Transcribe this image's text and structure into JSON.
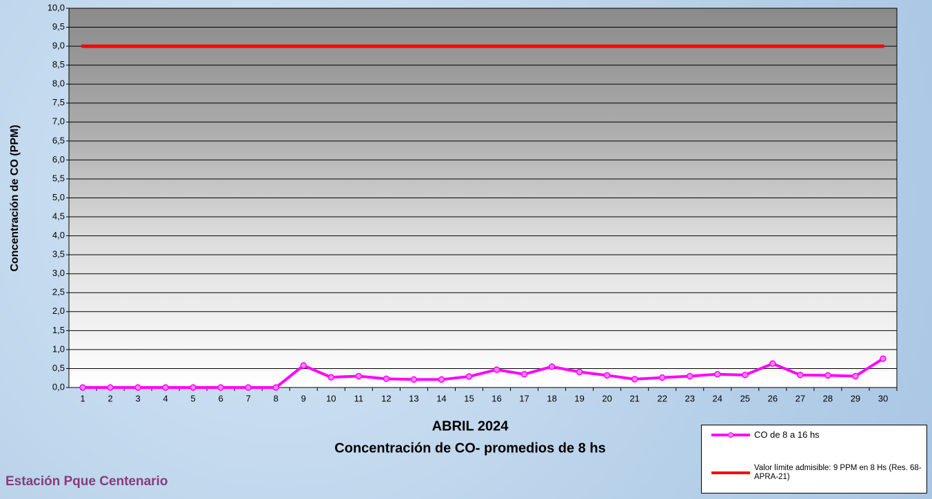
{
  "chart_data": {
    "type": "line",
    "title": "ABRIL 2024",
    "subtitle": "Concentración de CO- promedios de 8 hs",
    "y_label": "Concentración de CO (PPM)",
    "annotation": "Estación Pque Centenario",
    "categories": [
      "1",
      "2",
      "3",
      "4",
      "5",
      "6",
      "7",
      "8",
      "9",
      "10",
      "11",
      "12",
      "13",
      "14",
      "15",
      "16",
      "17",
      "18",
      "19",
      "20",
      "21",
      "22",
      "23",
      "24",
      "25",
      "26",
      "27",
      "28",
      "29",
      "30"
    ],
    "series": [
      {
        "name": "CO de 8 a 16 hs",
        "color": "#ff00ff",
        "markers": true,
        "values": [
          0,
          0,
          0,
          0,
          0,
          0,
          0,
          0,
          0.58,
          0.27,
          0.3,
          0.23,
          0.21,
          0.21,
          0.29,
          0.47,
          0.35,
          0.55,
          0.41,
          0.32,
          0.22,
          0.26,
          0.3,
          0.35,
          0.33,
          0.63,
          0.33,
          0.32,
          0.3,
          0.76
        ]
      },
      {
        "name": "Valor límite admisible: 9 PPM en 8 Hs (Res. 68-APRA-21)",
        "color": "#ff0000",
        "markers": false,
        "values": [
          9,
          9,
          9,
          9,
          9,
          9,
          9,
          9,
          9,
          9,
          9,
          9,
          9,
          9,
          9,
          9,
          9,
          9,
          9,
          9,
          9,
          9,
          9,
          9,
          9,
          9,
          9,
          9,
          9,
          9
        ]
      }
    ],
    "ylim": [
      0,
      10
    ],
    "yticks": [
      {
        "value": 0,
        "label": "0,0"
      },
      {
        "value": 0.5,
        "label": "0,5"
      },
      {
        "value": 1,
        "label": "1,0"
      },
      {
        "value": 1.5,
        "label": "1,5"
      },
      {
        "value": 2,
        "label": "2,0"
      },
      {
        "value": 2.5,
        "label": "2,5"
      },
      {
        "value": 3,
        "label": "3,0"
      },
      {
        "value": 3.5,
        "label": "3,5"
      },
      {
        "value": 4,
        "label": "4,0"
      },
      {
        "value": 4.5,
        "label": "4,5"
      },
      {
        "value": 5,
        "label": "5,0"
      },
      {
        "value": 5.5,
        "label": "5,5"
      },
      {
        "value": 6,
        "label": "6,0"
      },
      {
        "value": 6.5,
        "label": "6,5"
      },
      {
        "value": 7,
        "label": "7,0"
      },
      {
        "value": 7.5,
        "label": "7,5"
      },
      {
        "value": 8,
        "label": "8,0"
      },
      {
        "value": 8.5,
        "label": "8,5"
      },
      {
        "value": 9,
        "label": "9,0"
      },
      {
        "value": 9.5,
        "label": "9,5"
      },
      {
        "value": 10,
        "label": "10,0"
      }
    ],
    "grid": true
  }
}
